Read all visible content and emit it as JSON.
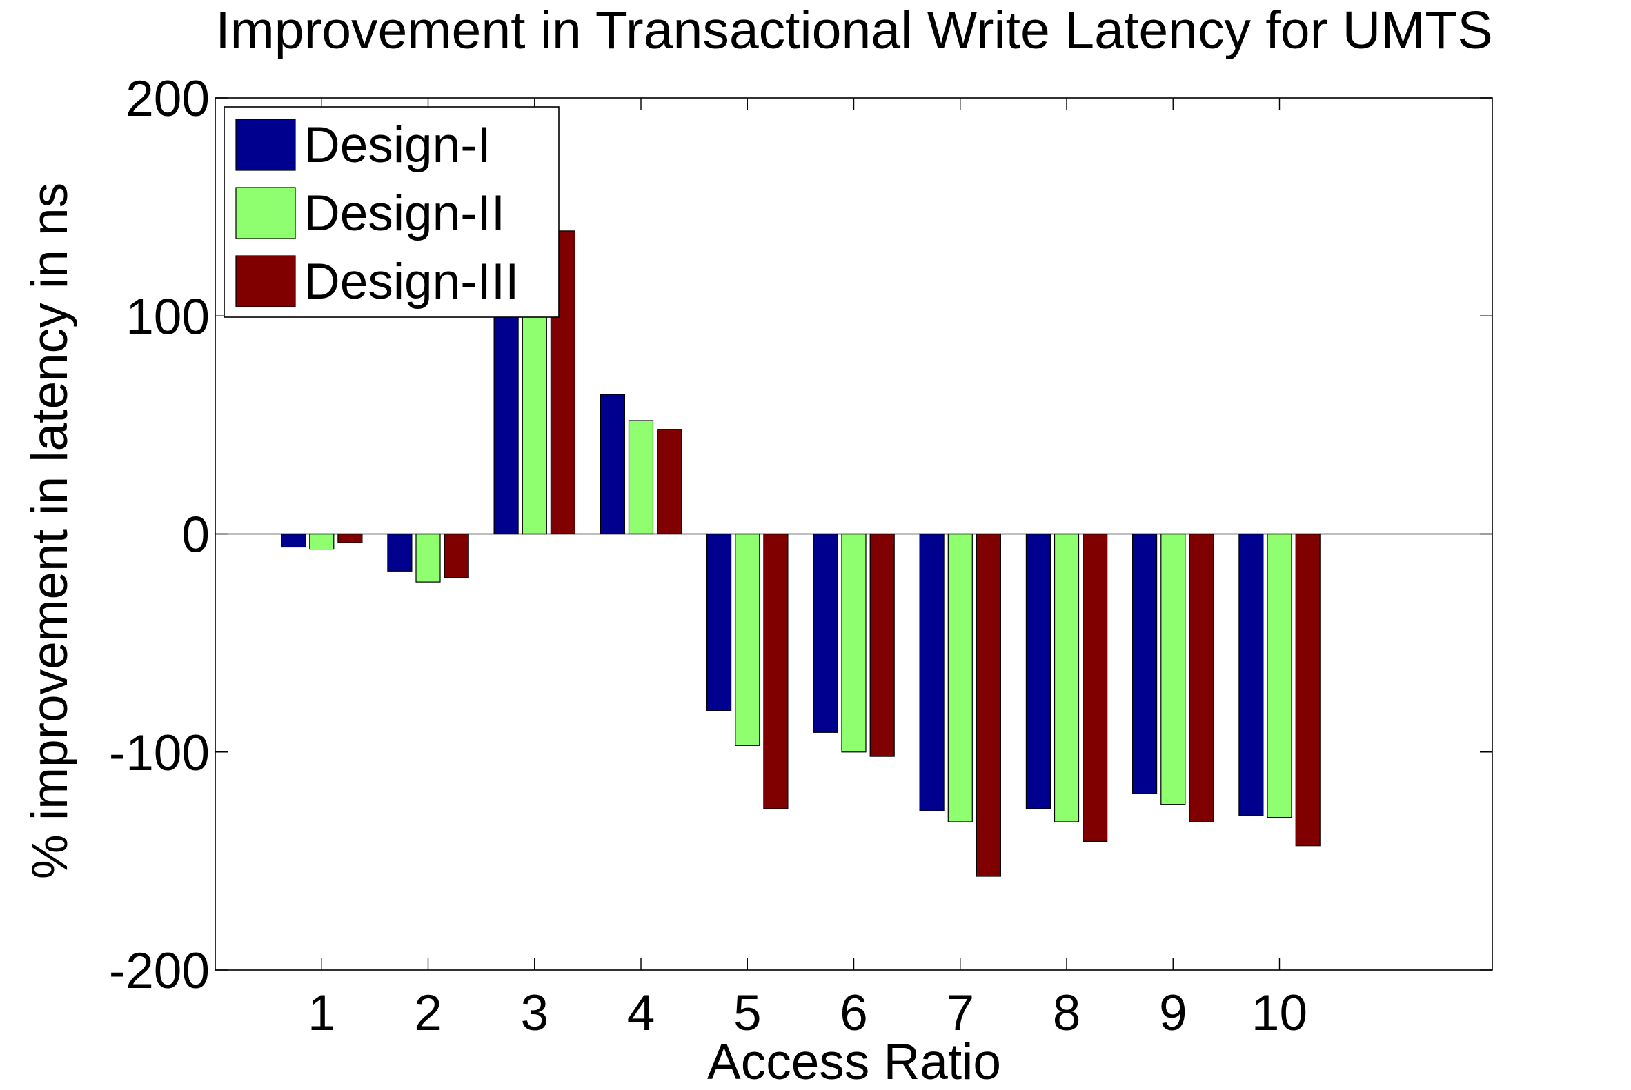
{
  "chart_data": {
    "type": "bar",
    "title": "Improvement in Transactional Write Latency for UMTS",
    "xlabel": "Access Ratio",
    "ylabel": "% improvement in latency in ns",
    "categories": [
      "1",
      "2",
      "3",
      "4",
      "5",
      "6",
      "7",
      "8",
      "9",
      "10"
    ],
    "xlim": [
      0,
      12
    ],
    "ylim": [
      -200,
      200
    ],
    "yticks": [
      "-200",
      "-100",
      "0",
      "100",
      "200"
    ],
    "grid": false,
    "legend_position": "top-left",
    "series": [
      {
        "name": "Design-I",
        "color": "#00008F",
        "values": [
          -6,
          -17,
          100,
          64,
          -81,
          -91,
          -127,
          -126,
          -119,
          -129
        ]
      },
      {
        "name": "Design-II",
        "color": "#8FFF6F",
        "values": [
          -7,
          -22,
          100,
          52,
          -97,
          -100,
          -132,
          -132,
          -124,
          -130
        ]
      },
      {
        "name": "Design-III",
        "color": "#800000",
        "values": [
          -4,
          -20,
          139,
          48,
          -126,
          -102,
          -157,
          -141,
          -132,
          -143
        ]
      }
    ]
  }
}
